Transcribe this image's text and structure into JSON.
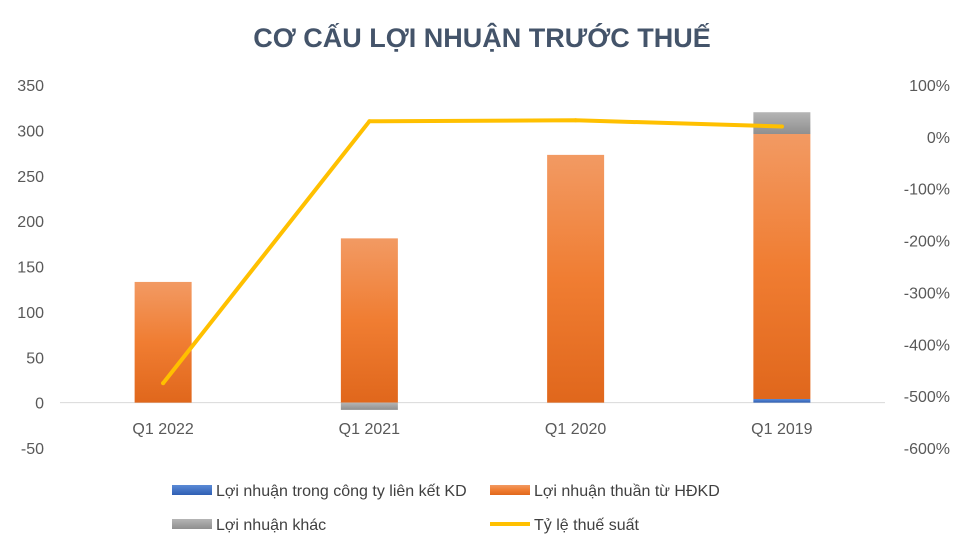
{
  "chart_data": {
    "type": "bar",
    "stacked": true,
    "title": "CƠ CẤU LỢI NHUẬN TRƯỚC THUẾ",
    "categories": [
      "Q1 2022",
      "Q1 2021",
      "Q1 2020",
      "Q1 2019"
    ],
    "series": [
      {
        "name": "Lợi nhuận trong công ty liên kết KD",
        "type": "bar",
        "axis": "left",
        "color": "#4472c4",
        "values": [
          0,
          0,
          0,
          4
        ]
      },
      {
        "name": "Lợi nhuận thuần từ HĐKD",
        "type": "bar",
        "axis": "left",
        "color": "#ed7d31",
        "values": [
          133,
          181,
          273,
          292
        ]
      },
      {
        "name": "Lợi nhuận khác",
        "type": "bar",
        "axis": "left",
        "color": "#a5a5a5",
        "values": [
          0,
          -8,
          0,
          24
        ]
      },
      {
        "name": "Tỷ lệ thuế suất",
        "type": "line",
        "axis": "right",
        "color": "#ffc000",
        "values": [
          -475,
          30,
          32,
          20
        ]
      }
    ],
    "y_left": {
      "min": -50,
      "max": 350,
      "ticks": [
        350,
        300,
        250,
        200,
        150,
        100,
        50,
        0,
        -50
      ]
    },
    "y_right": {
      "min": -600,
      "max": 100,
      "unit": "%",
      "ticks": [
        100,
        0,
        -100,
        -200,
        -300,
        -400,
        -500,
        -600
      ]
    },
    "grid": false,
    "legend_position": "bottom"
  }
}
